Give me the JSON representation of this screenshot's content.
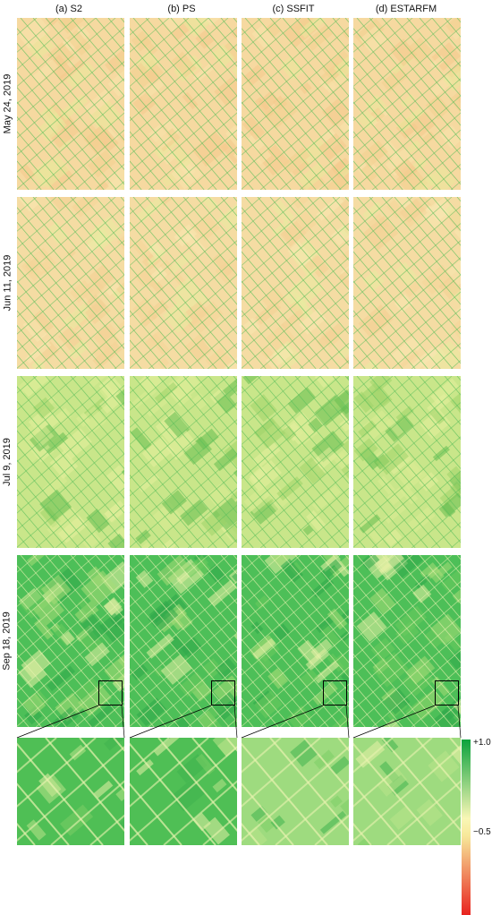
{
  "columns": [
    {
      "label": "(a) S2"
    },
    {
      "label": "(b) PS"
    },
    {
      "label": "(c) SSFIT"
    },
    {
      "label": "(d) ESTARFM"
    }
  ],
  "rows": [
    {
      "label": "May 24, 2019"
    },
    {
      "label": "Jun 11, 2019"
    },
    {
      "label": "Jul 9, 2019"
    },
    {
      "label": "Sep 18, 2019"
    }
  ],
  "colorbar": {
    "max_label": "+1.0",
    "min_label": "−0.5",
    "colors": [
      "#e8231f",
      "#f7e89a",
      "#f9f7b6",
      "#0ba23c"
    ]
  },
  "panel_colors": {
    "row1": "#f6d9a0",
    "row2": "#f5dca3",
    "row3": "#c9e68a",
    "row4": "#4dbf58",
    "zoom": "#6fcf6a"
  }
}
